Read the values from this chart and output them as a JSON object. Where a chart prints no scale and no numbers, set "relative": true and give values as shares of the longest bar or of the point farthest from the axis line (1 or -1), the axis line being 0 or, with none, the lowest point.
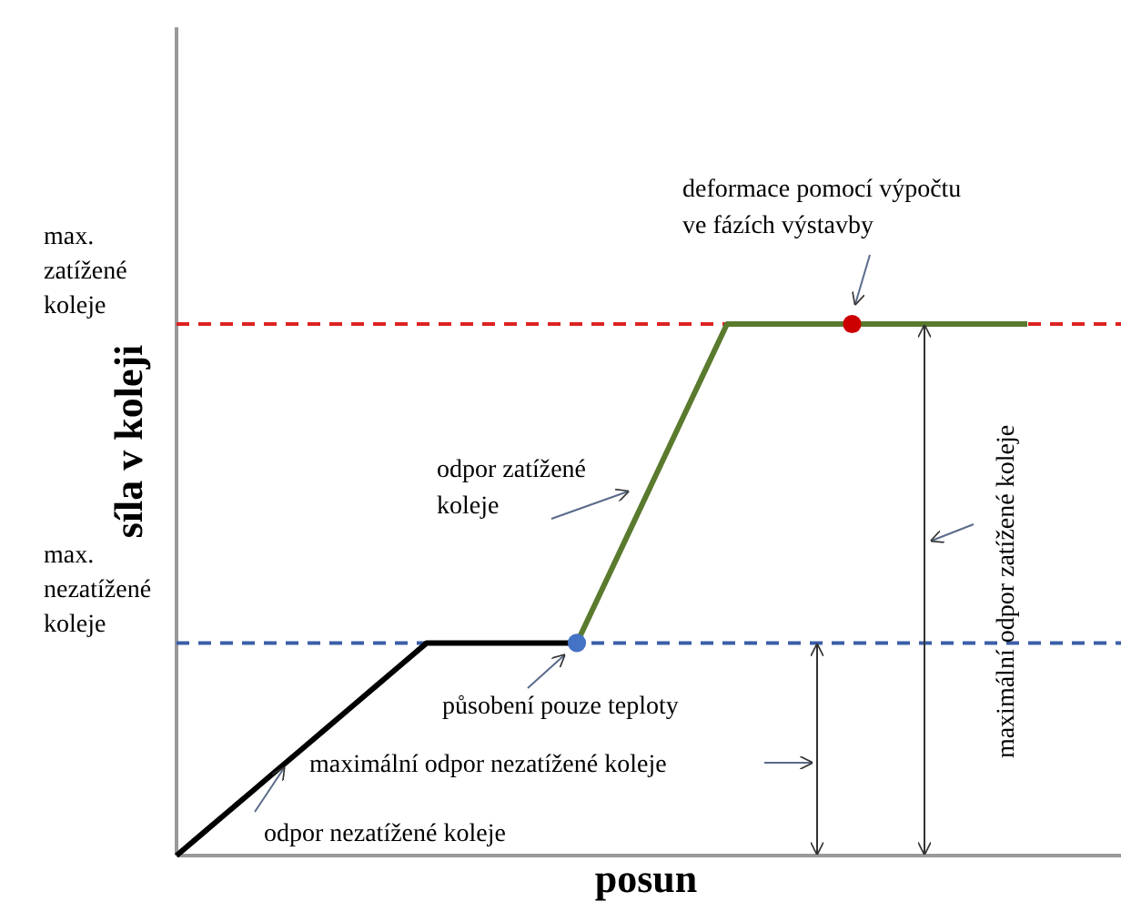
{
  "chart_data": {
    "type": "line",
    "relative": true,
    "xlabel": "posun",
    "ylabel": "síla v koleji",
    "categories": [
      null,
      null,
      null,
      null,
      null,
      null,
      null,
      null,
      null,
      null,
      null,
      null,
      null,
      null,
      null,
      null,
      null,
      null,
      null,
      null,
      null,
      null,
      null,
      null,
      null,
      null,
      null,
      null,
      null,
      null,
      null,
      null,
      null,
      null,
      null,
      null,
      null,
      null
    ],
    "series": [
      {
        "color": "#000000",
        "values": [
          0,
          0.04,
          0.08,
          0.12,
          0.16,
          0.2,
          0.24,
          0.28,
          0.32,
          0.36,
          0.4,
          0.4,
          0.4,
          0.4,
          0.4,
          0.4,
          0.4,
          null,
          null,
          null,
          null,
          null,
          null,
          null,
          null,
          null,
          null,
          null,
          null,
          null,
          null,
          null,
          null,
          null,
          null,
          null,
          null,
          null
        ]
      },
      {
        "color": "#5a7a2e",
        "values": [
          null,
          null,
          null,
          null,
          null,
          null,
          null,
          null,
          null,
          null,
          null,
          null,
          null,
          null,
          null,
          null,
          0.4,
          0.5,
          0.6,
          0.7,
          0.8,
          0.9,
          1,
          1,
          1,
          1,
          1,
          1,
          1,
          1,
          1,
          1,
          1,
          1,
          1,
          null,
          null,
          null
        ]
      },
      {
        "color": "#4472c4",
        "marker": "circle",
        "values": [
          null,
          null,
          null,
          null,
          null,
          null,
          null,
          null,
          null,
          null,
          null,
          null,
          null,
          null,
          null,
          null,
          0.4,
          null,
          null,
          null,
          null,
          null,
          null,
          null,
          null,
          null,
          null,
          null,
          null,
          null,
          null,
          null,
          null,
          null,
          null,
          null,
          null,
          null
        ]
      },
      {
        "color": "#cc0000",
        "marker": "circle",
        "values": [
          null,
          null,
          null,
          null,
          null,
          null,
          null,
          null,
          null,
          null,
          null,
          null,
          null,
          null,
          null,
          null,
          null,
          null,
          null,
          null,
          null,
          null,
          null,
          null,
          null,
          null,
          null,
          1,
          null,
          null,
          null,
          null,
          null,
          null,
          null,
          null,
          null,
          null
        ]
      }
    ],
    "ref_lines": [
      {
        "axis": "y",
        "value": 1,
        "label": "max.\nzatížené\nkoleje",
        "color": "#dd2222",
        "line_style": "dashed"
      },
      {
        "axis": "y",
        "value": 0.4,
        "label": "max.\nnezatížené\nkoleje",
        "color": "#3a5ea8",
        "line_style": "dashed"
      }
    ],
    "annotations": [
      "deformace pomocí výpočtu\nve fázích výstavby",
      "odpor zatížené\nkoleje",
      "působení pouze teploty",
      "maximální odpor nezatížené koleje",
      "odpor nezatížené koleje",
      "maximální odpor zatížené koleje"
    ]
  }
}
